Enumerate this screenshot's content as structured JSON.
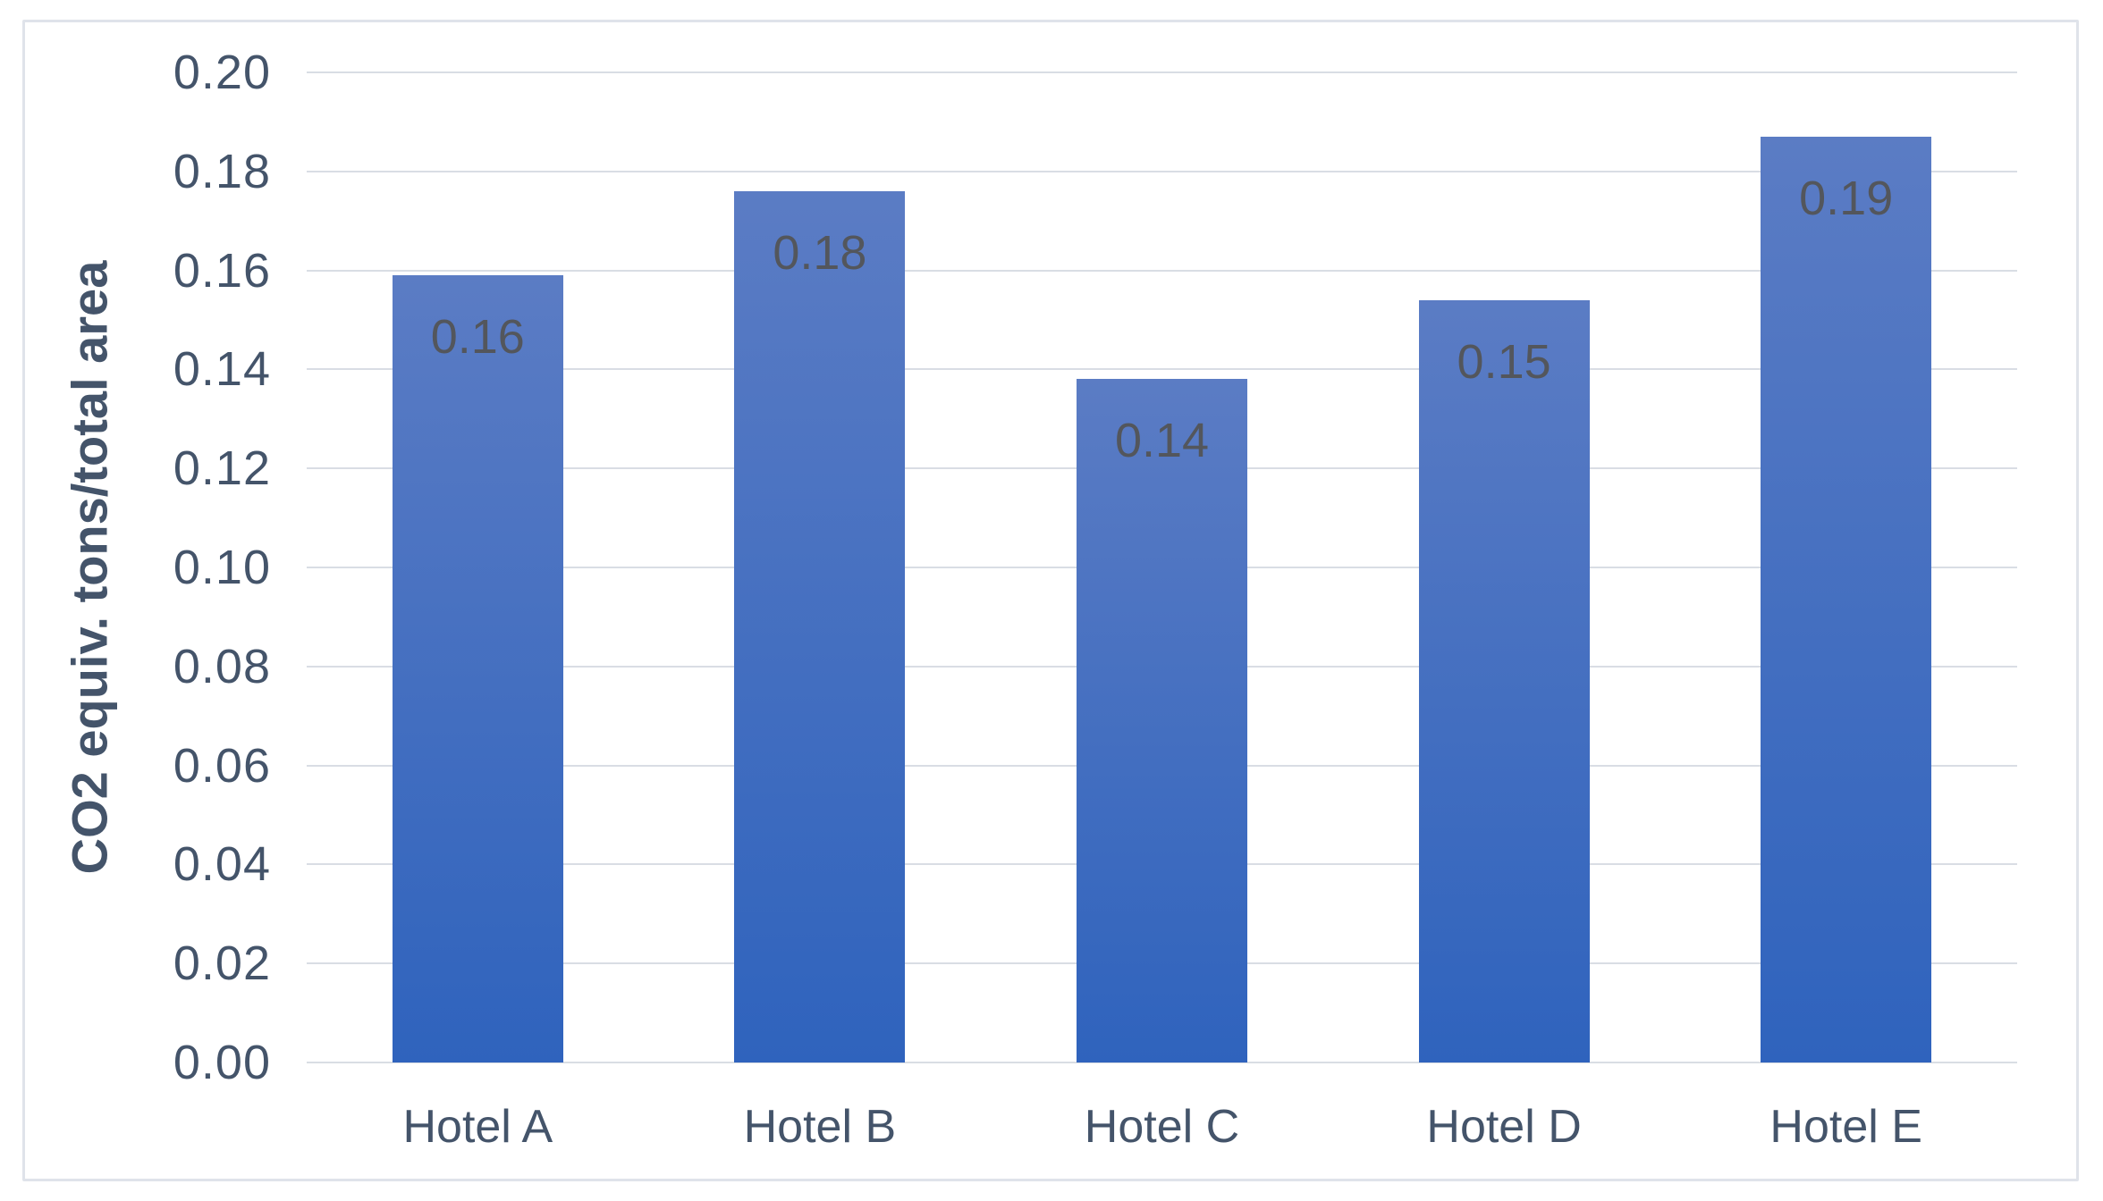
{
  "chart_data": {
    "type": "bar",
    "title": "",
    "categories": [
      "Hotel A",
      "Hotel B",
      "Hotel C",
      "Hotel D",
      "Hotel E"
    ],
    "values": [
      0.159,
      0.176,
      0.138,
      0.154,
      0.187
    ],
    "bar_labels": [
      "0.16",
      "0.18",
      "0.14",
      "0.15",
      "0.19"
    ],
    "xlabel": "",
    "ylabel": "CO2 equiv. tons/total area",
    "ylim": [
      0,
      0.2
    ],
    "ytick_step": 0.02,
    "ytick_labels": [
      "0.00",
      "0.02",
      "0.04",
      "0.06",
      "0.08",
      "0.10",
      "0.12",
      "0.14",
      "0.16",
      "0.18",
      "0.20"
    ],
    "grid": "horizontal",
    "legend": "none",
    "colors": {
      "bar_gradient_top": "#5b7cc4",
      "bar_gradient_bottom": "#2f63bd",
      "gridline": "#d9dde4",
      "axis_text": "#44546a",
      "data_label": "#53565c",
      "frame_border": "#dfe3ea",
      "background": "#ffffff"
    }
  }
}
